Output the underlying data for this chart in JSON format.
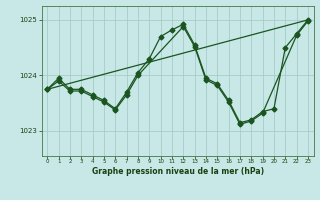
{
  "title": "Graphe pression niveau de la mer (hPa)",
  "background_color": "#c8e8e8",
  "grid_color": "#a0c8c0",
  "line_color": "#1a5520",
  "xlim": [
    -0.5,
    23.5
  ],
  "ylim": [
    1022.55,
    1025.25
  ],
  "yticks": [
    1023,
    1024,
    1025
  ],
  "xticks": [
    0,
    1,
    2,
    3,
    4,
    5,
    6,
    7,
    8,
    9,
    10,
    11,
    12,
    13,
    14,
    15,
    16,
    17,
    18,
    19,
    20,
    21,
    22,
    23
  ],
  "series1_x": [
    0,
    1,
    2,
    3,
    4,
    5,
    6,
    7,
    8,
    9,
    10,
    11,
    12,
    13,
    14,
    15,
    16,
    17,
    18,
    19,
    20,
    21,
    22,
    23
  ],
  "series1_y": [
    1023.75,
    1023.95,
    1023.75,
    1023.75,
    1023.65,
    1023.55,
    1023.4,
    1023.7,
    1024.05,
    1024.3,
    1024.7,
    1024.82,
    1024.92,
    1024.55,
    1023.95,
    1023.85,
    1023.55,
    1023.15,
    1023.2,
    1023.35,
    1023.4,
    1024.5,
    1024.75,
    1025.0
  ],
  "series2_x": [
    0,
    1,
    2,
    3,
    4,
    5,
    6,
    7,
    8,
    12,
    13,
    14,
    15,
    16,
    17,
    18,
    19,
    22,
    23
  ],
  "series2_y": [
    1023.75,
    1023.9,
    1023.72,
    1023.72,
    1023.62,
    1023.52,
    1023.38,
    1023.65,
    1024.0,
    1024.88,
    1024.52,
    1023.92,
    1023.82,
    1023.52,
    1023.12,
    1023.18,
    1023.32,
    1024.72,
    1024.98
  ],
  "trend_x": [
    0,
    23
  ],
  "trend_y": [
    1023.75,
    1025.0
  ]
}
